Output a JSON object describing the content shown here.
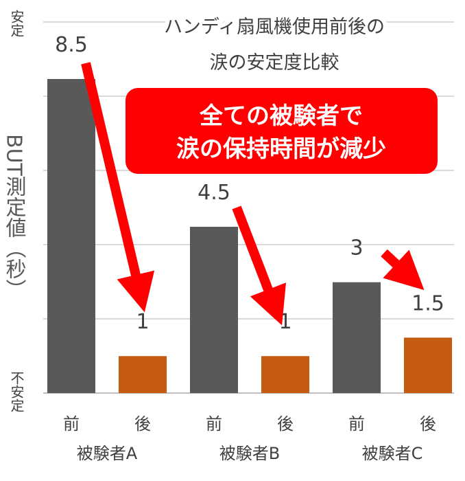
{
  "chart_data": {
    "type": "bar",
    "title_lines": [
      "ハンディ扇風機使用前後の",
      "涙の安定度比較"
    ],
    "ylabel": "BUT測定値（秒）",
    "y_top_label": "安定",
    "y_bottom_label": "不安定",
    "ylim": [
      0,
      8.5
    ],
    "grid": true,
    "callout_lines": [
      "全ての被験者で",
      "涙の保持時間が減少"
    ],
    "groups": [
      "被験者A",
      "被験者B",
      "被験者C"
    ],
    "series": [
      {
        "name": "前",
        "values": [
          8.5,
          4.5,
          3
        ]
      },
      {
        "name": "後",
        "values": [
          1,
          1,
          1.5
        ]
      }
    ],
    "data_labels": [
      [
        "8.5",
        "1"
      ],
      [
        "4.5",
        "1"
      ],
      [
        "3",
        "1.5"
      ]
    ],
    "colors": {
      "before": "#595959",
      "after": "#c55a11",
      "arrow": "#ff0000",
      "callout": "#ff0000",
      "grid": "#d9d9d9"
    }
  }
}
